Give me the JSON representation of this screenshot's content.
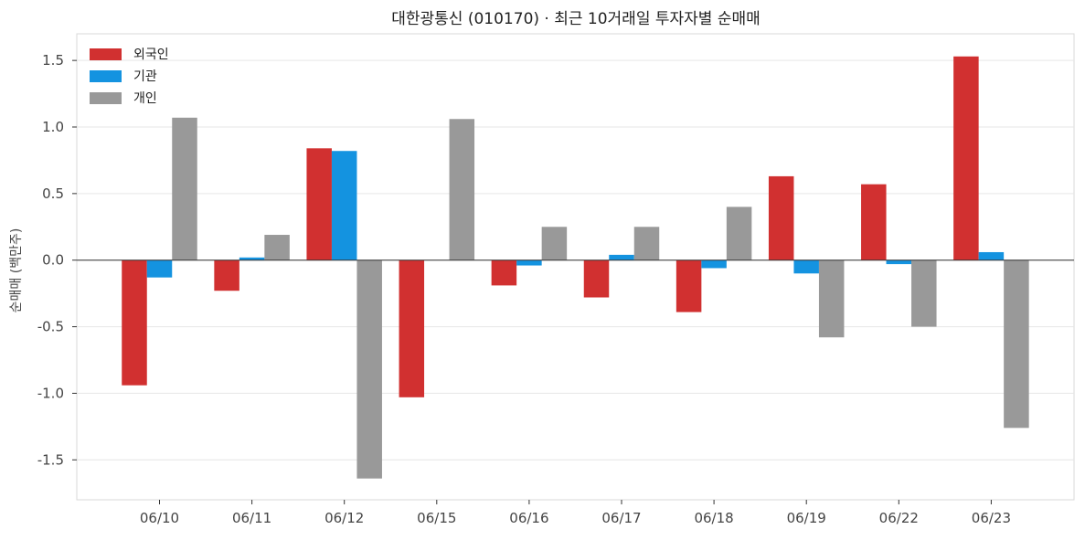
{
  "chart_data": {
    "type": "bar",
    "title": "대한광통신 (010170) · 최근 10거래일 투자자별 순매매",
    "xlabel": "",
    "ylabel": "순매매 (백만주)",
    "categories": [
      "06/10",
      "06/11",
      "06/12",
      "06/15",
      "06/16",
      "06/17",
      "06/18",
      "06/19",
      "06/22",
      "06/23"
    ],
    "series": [
      {
        "name": "외국인",
        "color": "#d13030",
        "values": [
          -0.94,
          -0.23,
          0.84,
          -1.03,
          -0.19,
          -0.28,
          -0.39,
          0.63,
          0.57,
          1.53
        ]
      },
      {
        "name": "기관",
        "color": "#1493e0",
        "values": [
          -0.13,
          0.02,
          0.82,
          0.0,
          -0.04,
          0.04,
          -0.06,
          -0.1,
          -0.03,
          0.06
        ]
      },
      {
        "name": "개인",
        "color": "#999999",
        "values": [
          1.07,
          0.19,
          -1.64,
          1.06,
          0.25,
          0.25,
          0.4,
          -0.58,
          -0.5,
          -1.26
        ]
      }
    ],
    "ylim": [
      -1.8,
      1.7
    ],
    "yticks": [
      -1.5,
      -1.0,
      -0.5,
      0.0,
      0.5,
      1.0,
      1.5
    ],
    "ytick_labels": [
      "-1.5",
      "-1.0",
      "-0.5",
      "0.0",
      "0.5",
      "1.0",
      "1.5"
    ],
    "grid": true,
    "legend_position": "top-left"
  }
}
